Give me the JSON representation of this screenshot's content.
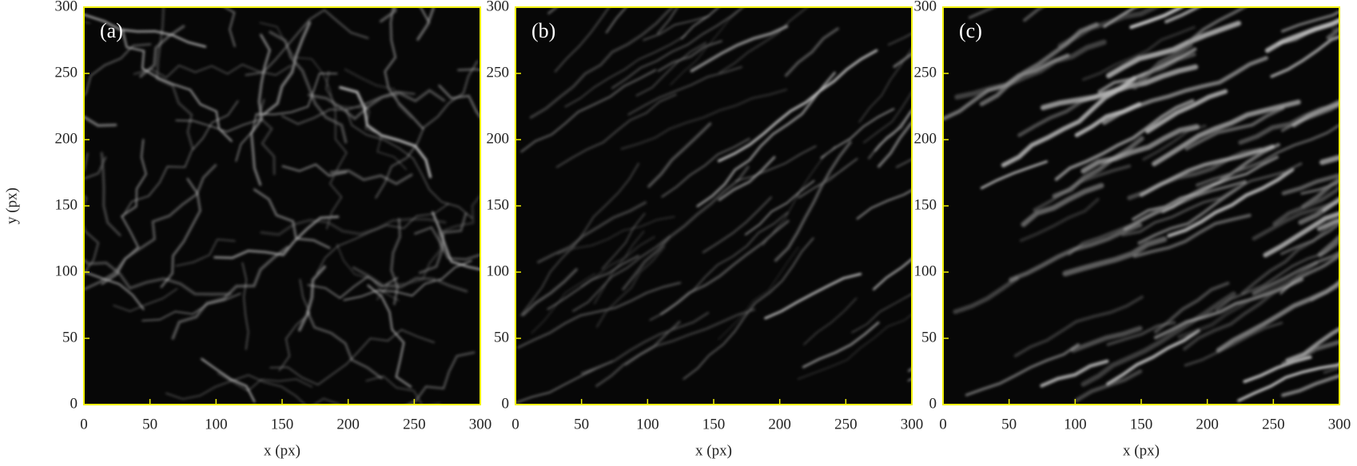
{
  "chart_data": [
    {
      "type": "image",
      "panel_label": "(a)",
      "x_label": "x (px)",
      "y_label": "y (px)",
      "xlim": [
        0,
        300
      ],
      "ylim": [
        0,
        300
      ],
      "xticks": [
        0,
        50,
        100,
        150,
        200,
        250,
        300
      ],
      "yticks": [
        0,
        50,
        100,
        150,
        200,
        250,
        300
      ],
      "frame_color": "#f0f000"
    },
    {
      "type": "image",
      "panel_label": "(b)",
      "x_label": "x (px)",
      "xlim": [
        0,
        300
      ],
      "ylim": [
        0,
        300
      ],
      "xticks": [
        0,
        50,
        100,
        150,
        200,
        250,
        300
      ],
      "yticks": [
        0,
        50,
        100,
        150,
        200,
        250,
        300
      ],
      "frame_color": "#f0f000"
    },
    {
      "type": "image",
      "panel_label": "(c)",
      "x_label": "x (px)",
      "xlim": [
        0,
        300
      ],
      "ylim": [
        0,
        300
      ],
      "xticks": [
        0,
        50,
        100,
        150,
        200,
        250,
        300
      ],
      "yticks": [
        0,
        50,
        100,
        150,
        200,
        250,
        300
      ],
      "frame_color": "#f0f000"
    }
  ]
}
